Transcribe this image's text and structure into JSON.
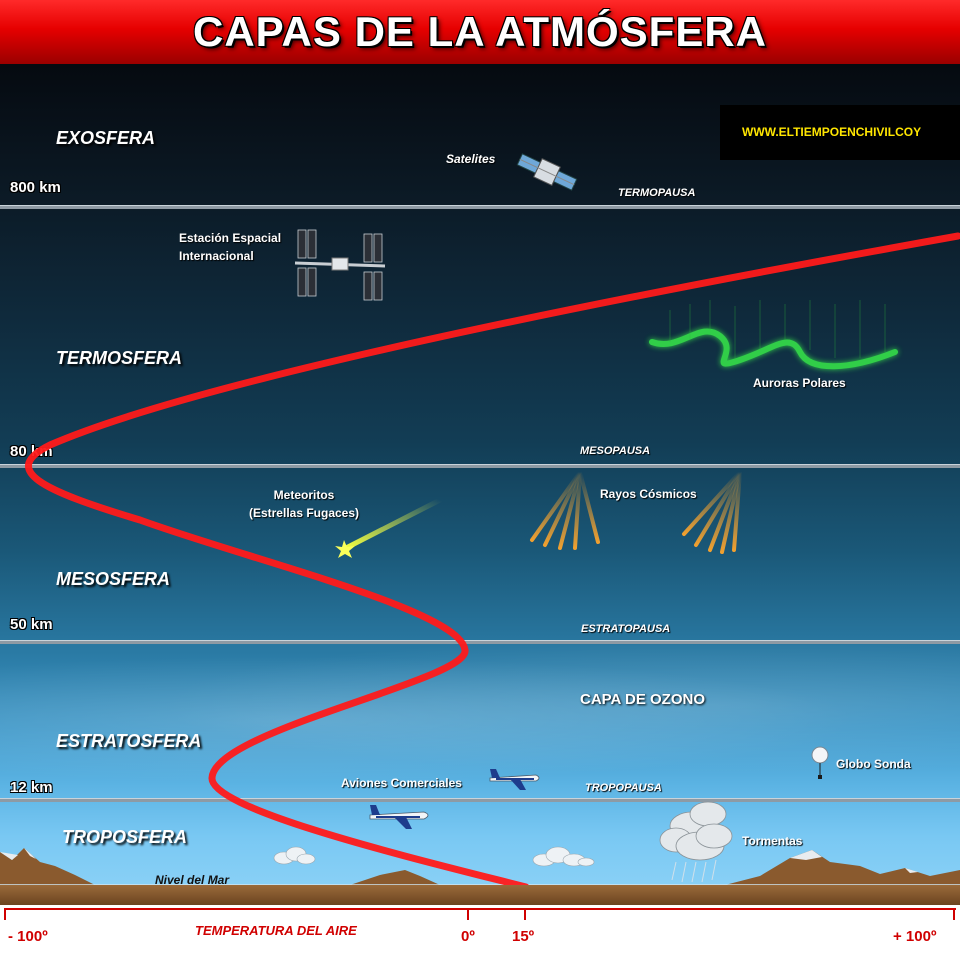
{
  "title": "CAPAS DE LA ATMÓSFERA",
  "website": "WWW.ELTIEMPOENCHIVILCOY",
  "layers": [
    {
      "name": "EXOSFERA"
    },
    {
      "name": "TERMOSFERA"
    },
    {
      "name": "MESOSFERA"
    },
    {
      "name": "ESTRATOSFERA"
    },
    {
      "name": "TROPOSFERA"
    }
  ],
  "altitudes": [
    "800 km",
    "80 km",
    "50 km",
    "12 km"
  ],
  "pauses": [
    "TERMOPAUSA",
    "MESOPAUSA",
    "ESTRATOPAUSA",
    "TROPOPAUSA"
  ],
  "features": {
    "satellites": "Satelites",
    "iss_line1": "Estación Espacial",
    "iss_line2": "Internacional",
    "auroras": "Auroras Polares",
    "meteors_line1": "Meteoritos",
    "meteors_line2": "(Estrellas Fugaces)",
    "cosmic_rays": "Rayos Cósmicos",
    "ozone": "CAPA DE OZONO",
    "airliners": "Aviones Comerciales",
    "weather_balloon": "Globo Sonda",
    "storms": "Tormentas",
    "sea_level": "Nivel del Mar"
  },
  "axis": {
    "title": "TEMPERATURA DEL AIRE",
    "ticks": [
      "- 100º",
      "0º",
      "15º",
      "+ 100º"
    ]
  },
  "colors": {
    "banner": "#e60000",
    "temperature_curve": "#ff1a1a",
    "aurora": "#35e04a",
    "cosmic_rays": "#f0a030",
    "website_text": "#ffe600"
  }
}
